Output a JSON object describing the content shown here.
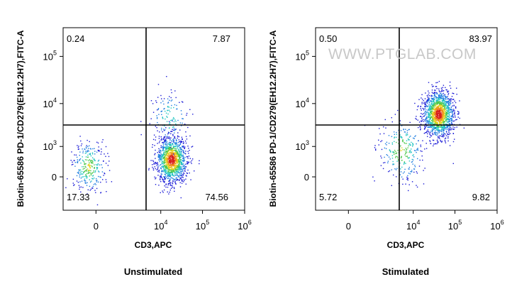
{
  "chart_data": [
    {
      "type": "scatter",
      "ylabel": "Biotin-65586 PD-1/CD279(EH12.2H7),FITC-A",
      "xlabel": "CD3,APC",
      "caption": "Unstimulated",
      "x_ticks": [
        {
          "base": "0",
          "exp": ""
        },
        {
          "base": "10",
          "exp": "4"
        },
        {
          "base": "10",
          "exp": "5"
        },
        {
          "base": "10",
          "exp": "6"
        }
      ],
      "y_ticks": [
        {
          "base": "0",
          "exp": ""
        },
        {
          "base": "10",
          "exp": "3"
        },
        {
          "base": "10",
          "exp": "4"
        },
        {
          "base": "10",
          "exp": "5"
        }
      ],
      "quadrants": {
        "top_left": "0.24",
        "top_right": "7.87",
        "bottom_left": "17.33",
        "bottom_right": "74.56"
      },
      "gate": {
        "x": "3.0e3",
        "y": "2.5e3"
      },
      "watermark": "",
      "populations": [
        {
          "cx": "-1.5e2",
          "cy": "2.0e2",
          "weight": 0.17,
          "spread": 1.0
        },
        {
          "cx": "1.8e4",
          "cy": "4.0e2",
          "weight": 0.75,
          "spread": 0.9
        },
        {
          "cx": "1.6e4",
          "cy": "5.0e3",
          "weight": 0.08,
          "spread": 1.1
        }
      ]
    },
    {
      "type": "scatter",
      "ylabel": "Biotin-65586 PD-1/CD279(EH12.2H7),FITC-A",
      "xlabel": "CD3,APC",
      "caption": "Stimulated",
      "x_ticks": [
        {
          "base": "0",
          "exp": ""
        },
        {
          "base": "10",
          "exp": "4"
        },
        {
          "base": "10",
          "exp": "5"
        },
        {
          "base": "10",
          "exp": "6"
        }
      ],
      "y_ticks": [
        {
          "base": "0",
          "exp": ""
        },
        {
          "base": "10",
          "exp": "3"
        },
        {
          "base": "10",
          "exp": "4"
        },
        {
          "base": "10",
          "exp": "5"
        }
      ],
      "quadrants": {
        "top_left": "0.50",
        "top_right": "83.97",
        "bottom_left": "5.72",
        "bottom_right": "9.82"
      },
      "gate": {
        "x": "3.0e3",
        "y": "2.5e3"
      },
      "watermark": "WWW.PTGLAB.COM",
      "populations": [
        {
          "cx": "4.0e4",
          "cy": "6.0e3",
          "weight": 0.84,
          "spread": 0.9
        },
        {
          "cx": "5.0e3",
          "cy": "8.0e2",
          "weight": 0.16,
          "spread": 1.3
        }
      ]
    }
  ]
}
